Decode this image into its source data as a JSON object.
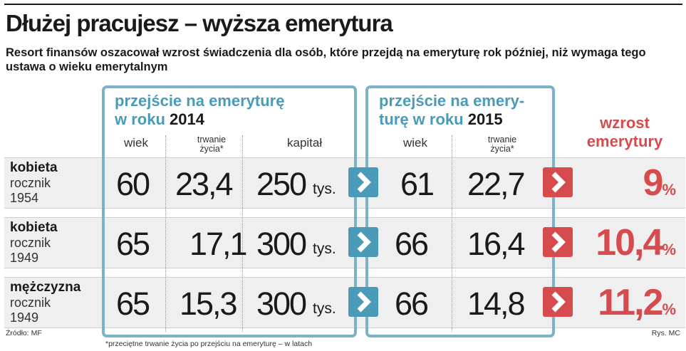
{
  "title": "Dłużej pracujesz – wyższa emerytura",
  "subtitle": "Resort finansów oszacował wzrost świadczenia dla osób, które przejdą na emeryturę rok później, niż wymaga tego ustawa o wieku emerytalnym",
  "box2014": {
    "head_line1": "przejście na emeryturę",
    "head_line2": "w roku",
    "year": "2014"
  },
  "box2015": {
    "head_line1": "przejście na emery-",
    "head_line2": "turę w roku",
    "year": "2015"
  },
  "columns": {
    "age": "wiek",
    "life_line1": "trwanie",
    "life_line2": "życia*",
    "capital": "kapitał",
    "age2": "wiek",
    "life2_line1": "trwanie",
    "life2_line2": "życia*"
  },
  "rise_header": {
    "line1": "wzrost",
    "line2": "emerytury"
  },
  "rows": [
    {
      "label": "kobieta",
      "sub1": "rocznik",
      "sub2": "1954",
      "age": "60",
      "life": "23,4",
      "capital": "250",
      "capital_unit": "tys.",
      "age_new": "61",
      "life_new": "22,7",
      "rise": "9",
      "rise_unit": "%"
    },
    {
      "label": "kobieta",
      "sub1": "rocznik",
      "sub2": "1949",
      "age": "65",
      "life": "17,1",
      "capital": "300",
      "capital_unit": "tys.",
      "age_new": "66",
      "life_new": "16,4",
      "rise": "10,4",
      "rise_unit": "%"
    },
    {
      "label": "mężczyzna",
      "sub1": "rocznik",
      "sub2": "1949",
      "age": "65",
      "life": "15,3",
      "capital": "300",
      "capital_unit": "tys.",
      "age_new": "66",
      "life_new": "14,8",
      "rise": "11,2",
      "rise_unit": "%"
    }
  ],
  "footer": {
    "source": "Źródło: MF",
    "note": "*przeciętne trwanie życia po przejściu na emeryturę – w latach",
    "credit": "Rys. MC"
  },
  "colors": {
    "accent_blue": "#4a9ab8",
    "box_border": "#7cb2c7",
    "accent_red": "#d54b4e"
  },
  "icons": {
    "transition_arrow": "chevron-right-icon"
  }
}
